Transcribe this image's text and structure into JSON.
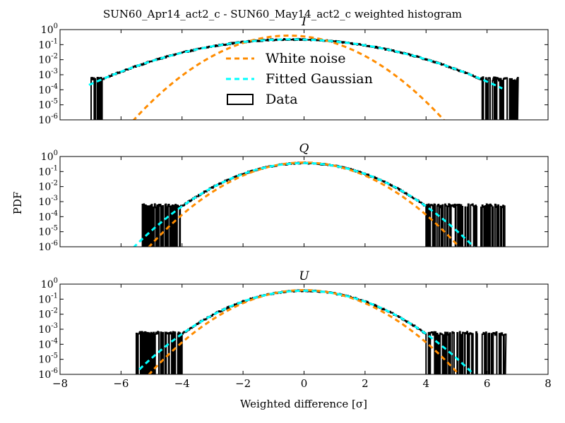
{
  "chart_data": {
    "type": "line",
    "title": "SUN60_Apr14_act2_c - SUN60_May14_act2_c weighted histogram",
    "xlabel": "Weighted difference [σ]",
    "ylabel": "PDF",
    "yscale": "log",
    "xlim": [
      -8,
      8
    ],
    "ylim": [
      1e-06,
      1
    ],
    "x_ticks": [
      "−8",
      "−6",
      "−4",
      "−2",
      "0",
      "2",
      "4",
      "6",
      "8"
    ],
    "y_ticks": [
      {
        "base": "10",
        "exp": "0"
      },
      {
        "base": "10",
        "exp": "-1"
      },
      {
        "base": "10",
        "exp": "-2"
      },
      {
        "base": "10",
        "exp": "-3"
      },
      {
        "base": "10",
        "exp": "-4"
      },
      {
        "base": "10",
        "exp": "-5"
      },
      {
        "base": "10",
        "exp": "-6"
      }
    ],
    "legend": {
      "placement": "inside-top-center (panel I)",
      "entries": [
        {
          "label": "White noise",
          "color": "#ff8c00",
          "style": "dashed"
        },
        {
          "label": "Fitted Gaussian",
          "color": "#00ffff",
          "style": "dashed"
        },
        {
          "label": "Data",
          "color": "#000000",
          "style": "step-box"
        }
      ]
    },
    "panels": [
      {
        "title": "I",
        "series": [
          {
            "name": "White noise",
            "model": "gaussian",
            "mean": -0.5,
            "sigma": 1.0,
            "x_range": [
              -5.8,
              4.8
            ]
          },
          {
            "name": "Fitted Gaussian",
            "model": "gaussian",
            "mean": -0.4,
            "sigma": 1.78,
            "x_range": [
              -7.05,
              6.5
            ]
          },
          {
            "name": "Data",
            "model": "histogram",
            "mean": -0.4,
            "sigma": 1.78,
            "x_range": [
              -7.0,
              7.0
            ],
            "tail_floor": 0.0005
          }
        ]
      },
      {
        "title": "Q",
        "series": [
          {
            "name": "White noise",
            "model": "gaussian",
            "mean": 0.0,
            "sigma": 1.0,
            "x_range": [
              -5.1,
              5.1
            ]
          },
          {
            "name": "Fitted Gaussian",
            "model": "gaussian",
            "mean": 0.0,
            "sigma": 1.1,
            "x_range": [
              -5.6,
              5.6
            ]
          },
          {
            "name": "Data",
            "model": "histogram",
            "mean": 0.0,
            "sigma": 1.1,
            "x_range": [
              -5.3,
              6.7
            ],
            "tail_floor": 0.0005
          }
        ]
      },
      {
        "title": "U",
        "series": [
          {
            "name": "White noise",
            "model": "gaussian",
            "mean": 0.0,
            "sigma": 1.0,
            "x_range": [
              -5.1,
              5.1
            ]
          },
          {
            "name": "Fitted Gaussian",
            "model": "gaussian",
            "mean": 0.0,
            "sigma": 1.1,
            "x_range": [
              -5.4,
              5.6
            ]
          },
          {
            "name": "Data",
            "model": "histogram",
            "mean": 0.0,
            "sigma": 1.1,
            "x_range": [
              -5.5,
              6.6
            ],
            "tail_floor": 0.0005
          }
        ]
      }
    ]
  }
}
